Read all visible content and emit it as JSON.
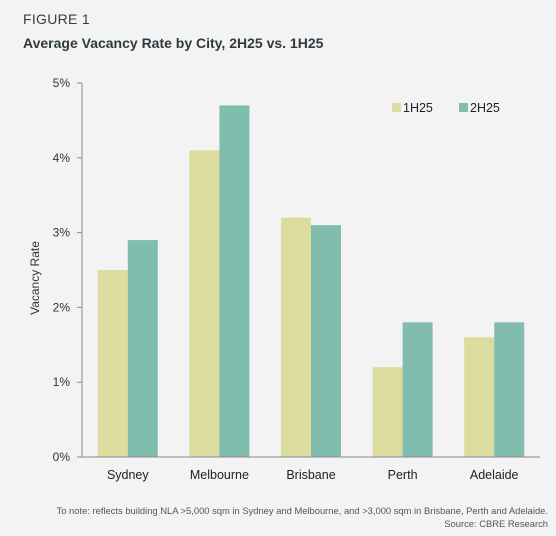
{
  "figure_label": "FIGURE 1",
  "notes": {
    "line1": "To note: reflects building NLA >5,000 sqm in Sydney and Melbourne, and >3,000 sqm in Brisbane, Perth and Adelaide.",
    "line2": "Source: CBRE Research"
  },
  "chart_data": {
    "type": "bar",
    "title": "Average Vacancy Rate by City, 2H25 vs. 1H25",
    "xlabel": "",
    "ylabel": "Vacancy Rate",
    "categories": [
      "Sydney",
      "Melbourne",
      "Brisbane",
      "Perth",
      "Adelaide"
    ],
    "series": [
      {
        "name": "1H25",
        "color": "#dcdc9e",
        "values": [
          2.5,
          4.1,
          3.2,
          1.2,
          1.6
        ]
      },
      {
        "name": "2H25",
        "color": "#80bdaf",
        "values": [
          2.9,
          4.7,
          3.1,
          1.8,
          1.8
        ]
      }
    ],
    "ylim": [
      0,
      5
    ],
    "yticks": [
      {
        "value": 0,
        "label": "0%"
      },
      {
        "value": 1,
        "label": "1%"
      },
      {
        "value": 2,
        "label": "2%"
      },
      {
        "value": 3,
        "label": "3%"
      },
      {
        "value": 4,
        "label": "4%"
      },
      {
        "value": 5,
        "label": "5%"
      }
    ],
    "grid": false,
    "legend_position": "top-right"
  }
}
